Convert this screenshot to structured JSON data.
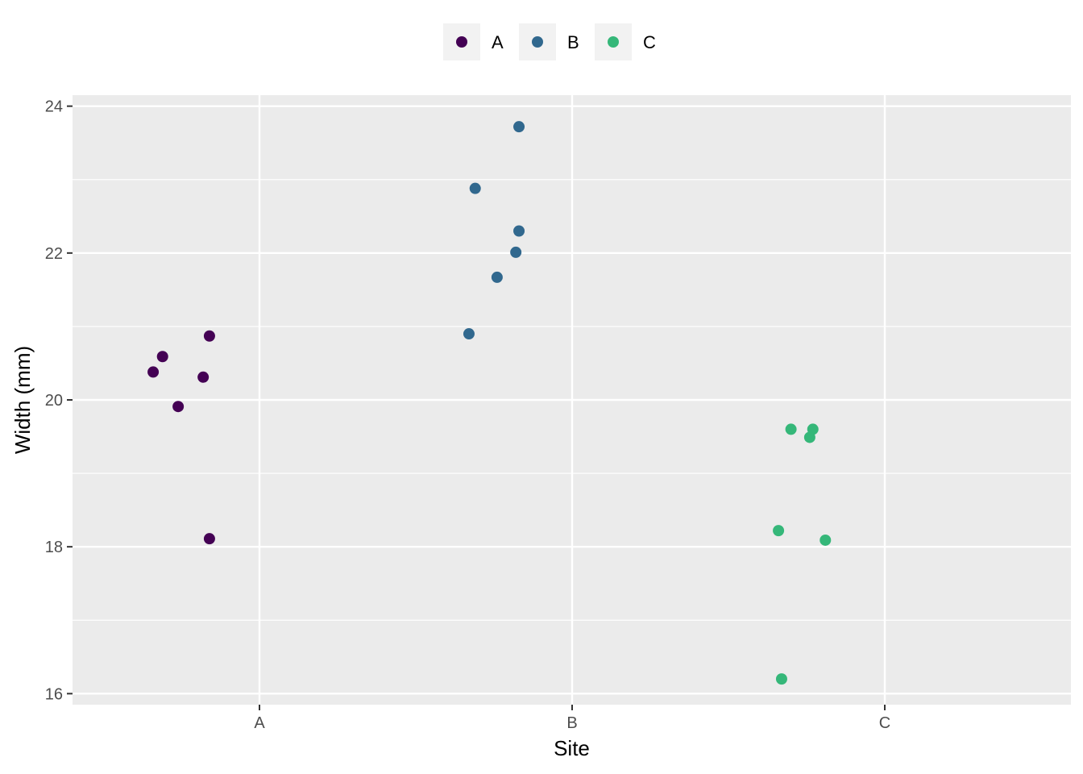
{
  "chart_data": {
    "type": "scatter",
    "xlabel": "Site",
    "ylabel": "Width (mm)",
    "categories": [
      "A",
      "B",
      "C"
    ],
    "ylim": [
      15.85,
      24.15
    ],
    "yticks": [
      16,
      18,
      20,
      22,
      24
    ],
    "grid": true,
    "legend_position": "top",
    "series": [
      {
        "name": "A",
        "color": "#440154",
        "points": [
          {
            "x": 0.84,
            "y": 20.87
          },
          {
            "x": 0.69,
            "y": 20.59
          },
          {
            "x": 0.66,
            "y": 20.38
          },
          {
            "x": 0.82,
            "y": 20.31
          },
          {
            "x": 0.74,
            "y": 19.91
          },
          {
            "x": 0.84,
            "y": 18.11
          }
        ]
      },
      {
        "name": "B",
        "color": "#31688E",
        "points": [
          {
            "x": 1.83,
            "y": 23.72
          },
          {
            "x": 1.69,
            "y": 22.88
          },
          {
            "x": 1.83,
            "y": 22.3
          },
          {
            "x": 1.82,
            "y": 22.01
          },
          {
            "x": 1.76,
            "y": 21.67
          },
          {
            "x": 1.67,
            "y": 20.9
          }
        ]
      },
      {
        "name": "C",
        "color": "#35B779",
        "points": [
          {
            "x": 2.7,
            "y": 19.6
          },
          {
            "x": 2.77,
            "y": 19.6
          },
          {
            "x": 2.76,
            "y": 19.49
          },
          {
            "x": 2.66,
            "y": 18.22
          },
          {
            "x": 2.81,
            "y": 18.09
          },
          {
            "x": 2.67,
            "y": 16.2
          }
        ]
      }
    ]
  }
}
